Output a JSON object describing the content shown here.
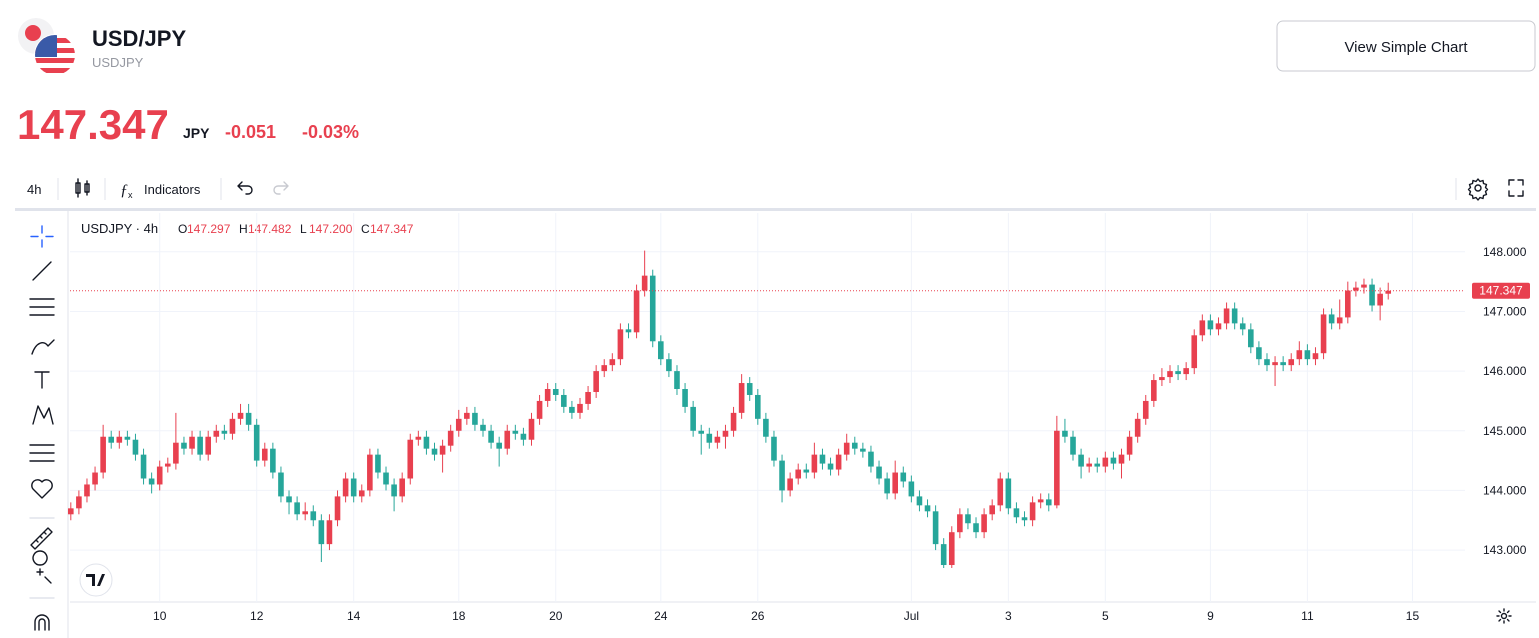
{
  "header": {
    "title": "USD/JPY",
    "symbol": "USDJPY",
    "price": "147.347",
    "currency": "JPY",
    "change": "-0.051",
    "change_percent": "-0.03%"
  },
  "button": "View Simple Chart",
  "toolbar": {
    "interval": "4h",
    "indicators": "Indicators"
  },
  "chart_data": {
    "type": "candlestick",
    "up_color": "#e8404f",
    "down_color": "#26a69a",
    "grid": true,
    "legend": {
      "title": "USDJPY · 4h",
      "items": [
        {
          "label": "O",
          "value": "147.297"
        },
        {
          "label": "H",
          "value": "147.482"
        },
        {
          "label": "L",
          "value": "147.200"
        },
        {
          "label": "C",
          "value": "147.347"
        }
      ]
    },
    "last_price": {
      "value": 147.347,
      "label": "147.347"
    },
    "xlim": [
      -0.1,
      172.5
    ],
    "xticks": [
      {
        "value": 11,
        "label": "10"
      },
      {
        "value": 23,
        "label": "12"
      },
      {
        "value": 35,
        "label": "14"
      },
      {
        "value": 48,
        "label": "18"
      },
      {
        "value": 60,
        "label": "20"
      },
      {
        "value": 73,
        "label": "24"
      },
      {
        "value": 85,
        "label": "26"
      },
      {
        "value": 104,
        "label": "Jul"
      },
      {
        "value": 116,
        "label": "3"
      },
      {
        "value": 128,
        "label": "5"
      },
      {
        "value": 141,
        "label": "9"
      },
      {
        "value": 153,
        "label": "11"
      },
      {
        "value": 166,
        "label": "15"
      }
    ],
    "ylim": [
      142.13,
      148.65
    ],
    "yticks": [
      {
        "value": 143,
        "label": "143.000"
      },
      {
        "value": 144,
        "label": "144.000"
      },
      {
        "value": 145,
        "label": "145.000"
      },
      {
        "value": 146,
        "label": "146.000"
      },
      {
        "value": 147,
        "label": "147.000"
      },
      {
        "value": 148,
        "label": "148.000"
      }
    ],
    "open": [
      143.6,
      143.7,
      143.9,
      144.1,
      144.3,
      144.9,
      144.8,
      144.9,
      144.85,
      144.6,
      144.2,
      144.1,
      144.4,
      144.45,
      144.8,
      144.7,
      144.9,
      144.6,
      144.9,
      145.0,
      144.95,
      145.2,
      145.3,
      145.1,
      144.5,
      144.7,
      144.3,
      143.9,
      143.8,
      143.6,
      143.65,
      143.5,
      143.1,
      143.5,
      143.9,
      144.2,
      143.9,
      144.0,
      144.6,
      144.3,
      144.1,
      143.9,
      144.2,
      144.85,
      144.9,
      144.7,
      144.6,
      144.75,
      145.0,
      145.2,
      145.3,
      145.1,
      145.0,
      144.8,
      144.7,
      145.0,
      144.95,
      144.85,
      145.2,
      145.5,
      145.7,
      145.6,
      145.4,
      145.3,
      145.45,
      145.65,
      146.0,
      146.1,
      146.2,
      146.7,
      146.65,
      147.35,
      147.6,
      146.5,
      146.2,
      146.0,
      145.7,
      145.4,
      145.0,
      144.95,
      144.8,
      144.9,
      145.0,
      145.3,
      145.8,
      145.6,
      145.2,
      144.9,
      144.5,
      144.0,
      144.2,
      144.35,
      144.3,
      144.6,
      144.45,
      144.35,
      144.6,
      144.8,
      144.7,
      144.65,
      144.4,
      144.2,
      143.95,
      144.3,
      144.15,
      143.9,
      143.75,
      143.65,
      143.1,
      142.75,
      143.3,
      143.6,
      143.45,
      143.3,
      143.6,
      143.75,
      144.2,
      143.7,
      143.55,
      143.5,
      143.8,
      143.85,
      143.75,
      145.0,
      144.9,
      144.6,
      144.4,
      144.45,
      144.4,
      144.55,
      144.45,
      144.6,
      144.9,
      145.2,
      145.5,
      145.85,
      145.9,
      146.0,
      145.95,
      146.05,
      146.6,
      146.85,
      146.7,
      146.8,
      147.05,
      146.8,
      146.7,
      146.4,
      146.2,
      146.1,
      146.15,
      146.1,
      146.2,
      146.35,
      146.2,
      146.3,
      146.95,
      146.8,
      146.9,
      147.35,
      147.4,
      147.45,
      147.1,
      147.297
    ],
    "high": [
      143.8,
      144.0,
      144.2,
      144.4,
      145.1,
      145.0,
      145.0,
      145.0,
      144.95,
      144.7,
      144.3,
      144.5,
      144.55,
      145.3,
      144.9,
      145.0,
      145.0,
      145.0,
      145.1,
      145.1,
      145.3,
      145.45,
      145.45,
      145.2,
      144.8,
      144.8,
      144.4,
      144.0,
      143.9,
      143.8,
      143.75,
      143.6,
      143.6,
      144.0,
      144.3,
      144.3,
      144.1,
      144.7,
      144.7,
      144.4,
      144.2,
      144.3,
      144.95,
      145.0,
      145.0,
      144.8,
      144.85,
      145.1,
      145.35,
      145.4,
      145.4,
      145.2,
      145.1,
      144.9,
      145.1,
      145.1,
      145.05,
      145.3,
      145.6,
      145.8,
      145.8,
      145.7,
      145.5,
      145.55,
      145.75,
      146.1,
      146.2,
      146.3,
      146.8,
      146.8,
      147.45,
      148.02,
      147.7,
      146.6,
      146.3,
      146.1,
      145.8,
      145.5,
      145.1,
      145.05,
      145.0,
      145.1,
      145.4,
      145.95,
      145.9,
      145.7,
      145.3,
      145.0,
      144.6,
      144.3,
      144.45,
      144.45,
      144.8,
      144.7,
      144.55,
      144.7,
      144.95,
      144.9,
      144.8,
      144.75,
      144.5,
      144.3,
      144.5,
      144.4,
      144.25,
      144.0,
      143.85,
      143.75,
      143.2,
      143.4,
      143.7,
      143.7,
      143.55,
      143.7,
      143.85,
      144.3,
      144.3,
      143.8,
      143.65,
      143.9,
      143.95,
      143.95,
      145.25,
      145.2,
      145.0,
      144.7,
      144.55,
      144.55,
      144.65,
      144.65,
      144.7,
      145.0,
      145.3,
      145.6,
      145.95,
      146.05,
      146.1,
      146.1,
      146.15,
      146.7,
      146.95,
      146.95,
      146.9,
      147.15,
      147.15,
      146.9,
      146.8,
      146.5,
      146.3,
      146.25,
      146.25,
      146.3,
      146.5,
      146.45,
      146.4,
      147.05,
      147.05,
      147.2,
      147.5,
      147.5,
      147.55,
      147.55,
      147.4,
      147.482
    ],
    "low": [
      143.5,
      143.6,
      143.8,
      144.0,
      144.2,
      144.7,
      144.7,
      144.75,
      144.5,
      144.1,
      143.95,
      144.0,
      144.3,
      144.35,
      144.6,
      144.6,
      144.5,
      144.5,
      144.8,
      144.85,
      144.85,
      145.1,
      145.0,
      144.4,
      144.4,
      144.2,
      143.8,
      143.6,
      143.5,
      143.5,
      143.4,
      142.8,
      143.0,
      143.4,
      143.8,
      143.8,
      143.8,
      143.9,
      144.2,
      144.0,
      143.65,
      143.8,
      144.1,
      144.75,
      144.6,
      144.5,
      144.3,
      144.65,
      144.9,
      145.1,
      145.0,
      144.9,
      144.7,
      144.4,
      144.6,
      144.85,
      144.75,
      144.75,
      145.1,
      145.4,
      145.5,
      145.3,
      145.2,
      145.2,
      145.35,
      145.55,
      145.9,
      146.0,
      146.1,
      146.55,
      146.55,
      147.25,
      146.4,
      146.1,
      145.9,
      145.6,
      145.3,
      144.9,
      144.6,
      144.7,
      144.7,
      144.7,
      144.9,
      145.2,
      145.5,
      145.1,
      144.8,
      144.4,
      143.8,
      143.9,
      144.1,
      144.2,
      144.2,
      144.35,
      144.25,
      144.25,
      144.5,
      144.6,
      144.55,
      144.3,
      144.1,
      143.85,
      143.85,
      144.05,
      143.8,
      143.65,
      143.55,
      143.0,
      142.7,
      142.7,
      143.2,
      143.35,
      143.2,
      143.2,
      143.5,
      143.65,
      143.6,
      143.45,
      143.4,
      143.4,
      143.7,
      143.65,
      143.7,
      144.8,
      144.5,
      144.2,
      144.3,
      144.3,
      144.3,
      144.35,
      144.2,
      144.5,
      144.8,
      145.1,
      145.4,
      145.75,
      145.8,
      145.85,
      145.85,
      145.95,
      146.5,
      146.6,
      146.6,
      146.7,
      146.7,
      146.6,
      146.3,
      146.1,
      146.0,
      145.75,
      146.0,
      146.0,
      146.1,
      146.1,
      146.1,
      146.2,
      146.7,
      146.7,
      146.8,
      147.25,
      147.3,
      147.0,
      146.85,
      147.2
    ],
    "close": [
      143.7,
      143.9,
      144.1,
      144.3,
      144.9,
      144.8,
      144.9,
      144.85,
      144.6,
      144.2,
      144.1,
      144.4,
      144.45,
      144.8,
      144.7,
      144.9,
      144.6,
      144.9,
      145.0,
      144.95,
      145.2,
      145.3,
      145.1,
      144.5,
      144.7,
      144.3,
      143.9,
      143.8,
      143.6,
      143.65,
      143.5,
      143.1,
      143.5,
      143.9,
      144.2,
      143.9,
      144.0,
      144.6,
      144.3,
      144.1,
      143.9,
      144.2,
      144.85,
      144.9,
      144.7,
      144.6,
      144.75,
      145.0,
      145.2,
      145.3,
      145.1,
      145.0,
      144.8,
      144.7,
      145.0,
      144.95,
      144.85,
      145.2,
      145.5,
      145.7,
      145.6,
      145.4,
      145.3,
      145.45,
      145.65,
      146.0,
      146.1,
      146.2,
      146.7,
      146.65,
      147.35,
      147.6,
      146.5,
      146.2,
      146.0,
      145.7,
      145.4,
      145.0,
      144.95,
      144.8,
      144.9,
      145.0,
      145.3,
      145.8,
      145.6,
      145.2,
      144.9,
      144.5,
      144.0,
      144.2,
      144.35,
      144.3,
      144.6,
      144.45,
      144.35,
      144.6,
      144.8,
      144.7,
      144.65,
      144.4,
      144.2,
      143.95,
      144.3,
      144.15,
      143.9,
      143.75,
      143.65,
      143.1,
      142.75,
      143.3,
      143.6,
      143.45,
      143.3,
      143.6,
      143.75,
      144.2,
      143.7,
      143.55,
      143.5,
      143.8,
      143.85,
      143.75,
      145.0,
      144.9,
      144.6,
      144.4,
      144.45,
      144.4,
      144.55,
      144.45,
      144.6,
      144.9,
      145.2,
      145.5,
      145.85,
      145.9,
      146.0,
      145.95,
      146.05,
      146.6,
      146.85,
      146.7,
      146.8,
      147.05,
      146.8,
      146.7,
      146.4,
      146.2,
      146.1,
      146.15,
      146.1,
      146.2,
      146.35,
      146.2,
      146.3,
      146.95,
      146.8,
      146.9,
      147.35,
      147.4,
      147.45,
      147.1,
      147.297,
      147.347
    ]
  }
}
